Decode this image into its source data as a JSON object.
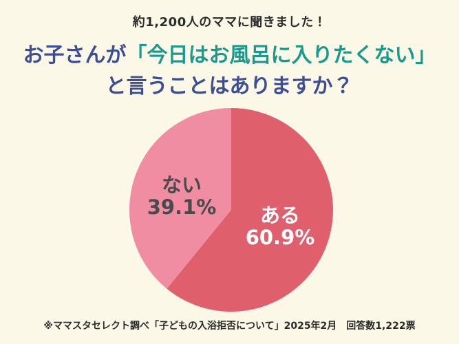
{
  "theme": {
    "background": "#fbf8e8",
    "eyebrow_color": "#2b2b2b",
    "title_main_color": "#3c4e94",
    "title_highlight_color": "#1a9a8e",
    "footnote_color": "#2b2b2b"
  },
  "header": {
    "eyebrow": "約1,200人のママに聞きました！"
  },
  "title": {
    "line1_prefix": "お子さんが",
    "line1_highlight": "「今日はお風呂に入りたくない」",
    "line2": "と言うことはありますか？"
  },
  "chart_data": {
    "type": "pie",
    "title": "お子さんが「今日はお風呂に入りたくない」と言うことはありますか？",
    "start_angle_deg": 0,
    "direction": "clockwise",
    "legend_position": "inside",
    "slices": [
      {
        "label": "ある",
        "value": 60.9,
        "display": "60.9%",
        "color": "#e05f6c",
        "text_color": "#ffffff"
      },
      {
        "label": "ない",
        "value": 39.1,
        "display": "39.1%",
        "color": "#f08da3",
        "text_color": "#4a4a4d"
      }
    ]
  },
  "footnote": {
    "text": "※ママスタセレクト調べ「子どもの入浴拒否について」2025年2月　回答数1,222票"
  }
}
